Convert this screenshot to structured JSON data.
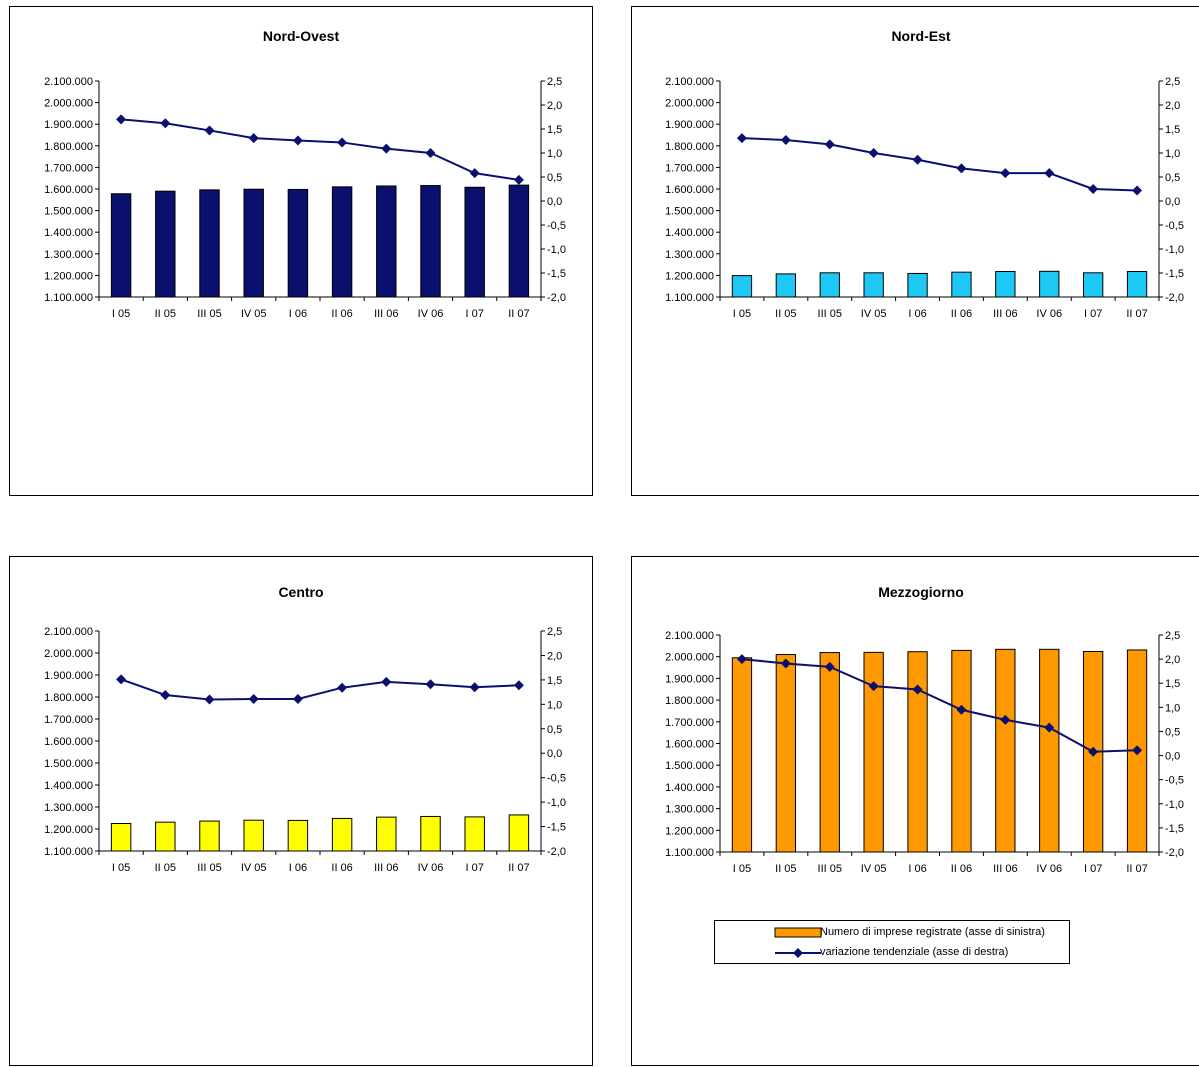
{
  "chart_data": [
    {
      "type": "bar",
      "title": "Nord-Ovest",
      "categories": [
        "I 05",
        "II 05",
        "III 05",
        "IV 05",
        "I 06",
        "II 06",
        "III 06",
        "IV 06",
        "I 07",
        "II 07"
      ],
      "series": [
        {
          "axis": "left",
          "kind": "bar",
          "color": "#0b0f6e",
          "values": [
            1578000,
            1590000,
            1596000,
            1599000,
            1598000,
            1610000,
            1614000,
            1616000,
            1608000,
            1618000
          ]
        },
        {
          "axis": "right",
          "kind": "line",
          "color": "#0b0f6e",
          "values": [
            1.7,
            1.62,
            1.47,
            1.31,
            1.26,
            1.22,
            1.09,
            1.0,
            0.58,
            0.44
          ]
        }
      ],
      "left_ticks": [
        "2.100.000",
        "2.000.000",
        "1.900.000",
        "1.800.000",
        "1.700.000",
        "1.600.000",
        "1.500.000",
        "1.400.000",
        "1.300.000",
        "1.200.000",
        "1.100.000"
      ],
      "right_ticks": [
        "2,5",
        "2,0",
        "1,5",
        "1,0",
        "0,5",
        "0,0",
        "-0,5",
        "-1,0",
        "-1,5",
        "-2,0"
      ],
      "ylim_left": [
        1100000,
        2100000
      ],
      "ylim_right": [
        -2.0,
        2.5
      ],
      "grid": false
    },
    {
      "type": "bar",
      "title": "Nord-Est",
      "categories": [
        "I 05",
        "II 05",
        "III 05",
        "IV 05",
        "I 06",
        "II 06",
        "III 06",
        "IV 06",
        "I 07",
        "II 07"
      ],
      "series": [
        {
          "axis": "left",
          "kind": "bar",
          "color": "#1ec8f5",
          "values": [
            1199000,
            1207000,
            1212000,
            1212000,
            1209000,
            1215000,
            1218000,
            1219000,
            1212000,
            1218000
          ]
        },
        {
          "axis": "right",
          "kind": "line",
          "color": "#0b0f6e",
          "values": [
            1.31,
            1.27,
            1.18,
            1.0,
            0.86,
            0.68,
            0.58,
            0.58,
            0.25,
            0.22
          ]
        }
      ],
      "left_ticks": [
        "2.100.000",
        "2.000.000",
        "1.900.000",
        "1.800.000",
        "1.700.000",
        "1.600.000",
        "1.500.000",
        "1.400.000",
        "1.300.000",
        "1.200.000",
        "1.100.000"
      ],
      "right_ticks": [
        "2,5",
        "2,0",
        "1,5",
        "1,0",
        "0,5",
        "0,0",
        "-0,5",
        "-1,0",
        "-1,5",
        "-2,0"
      ],
      "ylim_left": [
        1100000,
        2100000
      ],
      "ylim_right": [
        -2.0,
        2.5
      ],
      "grid": false
    },
    {
      "type": "bar",
      "title": "Centro",
      "categories": [
        "I 05",
        "II 05",
        "III 05",
        "IV 05",
        "I 06",
        "II 06",
        "III 06",
        "IV 06",
        "I 07",
        "II 07"
      ],
      "series": [
        {
          "axis": "left",
          "kind": "bar",
          "color": "#ffff00",
          "values": [
            1225000,
            1231000,
            1236000,
            1240000,
            1239000,
            1248000,
            1254000,
            1257000,
            1255000,
            1264000
          ]
        },
        {
          "axis": "right",
          "kind": "line",
          "color": "#0b0f6e",
          "values": [
            1.51,
            1.19,
            1.1,
            1.11,
            1.11,
            1.34,
            1.46,
            1.41,
            1.35,
            1.39
          ]
        }
      ],
      "left_ticks": [
        "2.100.000",
        "2.000.000",
        "1.900.000",
        "1.800.000",
        "1.700.000",
        "1.600.000",
        "1.500.000",
        "1.400.000",
        "1.300.000",
        "1.200.000",
        "1.100.000"
      ],
      "right_ticks": [
        "2,5",
        "2,0",
        "1,5",
        "1,0",
        "0,5",
        "0,0",
        "-0,5",
        "-1,0",
        "-1,5",
        "-2,0"
      ],
      "ylim_left": [
        1100000,
        2100000
      ],
      "ylim_right": [
        -2.0,
        2.5
      ],
      "grid": false
    },
    {
      "type": "bar",
      "title": "Mezzogiorno",
      "categories": [
        "I 05",
        "II 05",
        "III 05",
        "IV 05",
        "I 06",
        "II 06",
        "III 06",
        "IV 06",
        "I 07",
        "II 07"
      ],
      "series": [
        {
          "axis": "left",
          "kind": "bar",
          "color": "#ff9900",
          "name": "Numero di imprese registrate (asse di sinistra)",
          "values": [
            1995000,
            2010000,
            2019000,
            2020000,
            2023000,
            2029000,
            2034000,
            2034000,
            2024000,
            2031000
          ]
        },
        {
          "axis": "right",
          "kind": "line",
          "color": "#0b0f6e",
          "name": "variazione tendenziale (asse di destra)",
          "values": [
            2.0,
            1.91,
            1.84,
            1.44,
            1.37,
            0.95,
            0.74,
            0.58,
            0.08,
            0.11
          ]
        }
      ],
      "left_ticks": [
        "2.100.000",
        "2.000.000",
        "1.900.000",
        "1.800.000",
        "1.700.000",
        "1.600.000",
        "1.500.000",
        "1.400.000",
        "1.300.000",
        "1.200.000",
        "1.100.000"
      ],
      "right_ticks": [
        "2,5",
        "2,0",
        "1,5",
        "1,0",
        "0,5",
        "0,0",
        "-0,5",
        "-1,0",
        "-1,5",
        "-2,0"
      ],
      "ylim_left": [
        1100000,
        2100000
      ],
      "ylim_right": [
        -2.0,
        2.5
      ],
      "grid": false,
      "legend": "bottom"
    }
  ]
}
